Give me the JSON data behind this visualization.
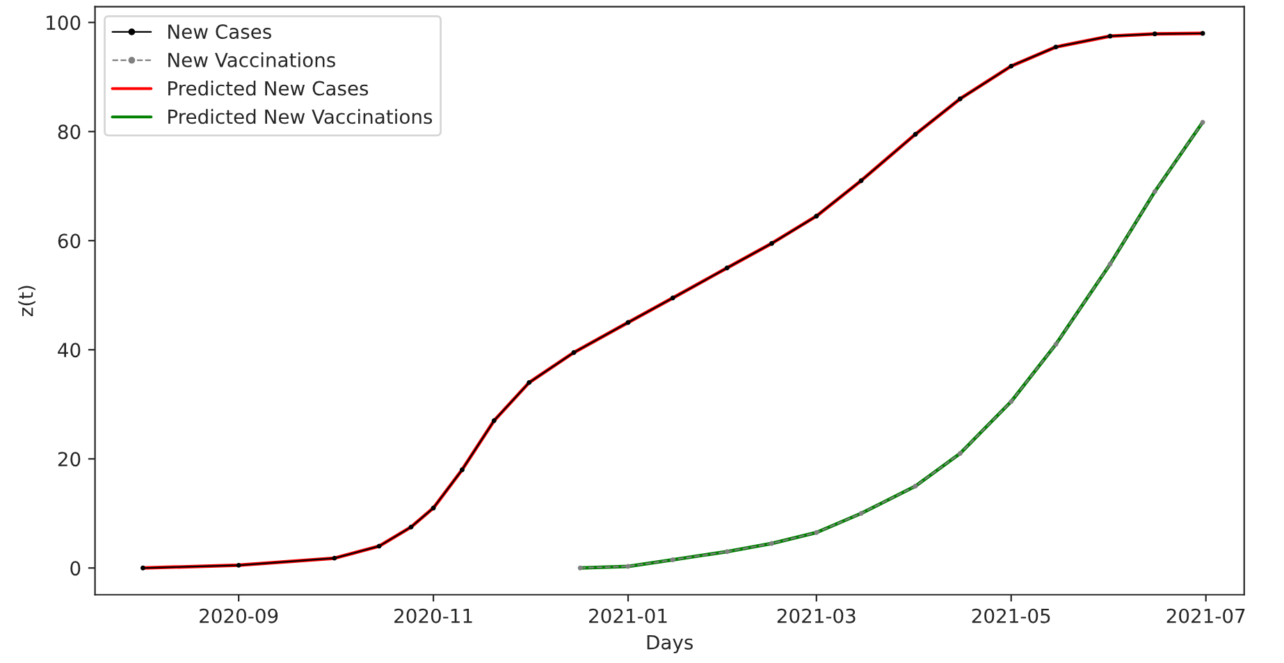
{
  "chart_data": {
    "type": "line",
    "xlabel": "Days",
    "ylabel": "z(t)",
    "xlim": [
      "2020-07-18",
      "2021-07-13"
    ],
    "xticks": [
      {
        "value": "2020-09-01",
        "label": "2020-09"
      },
      {
        "value": "2020-11-01",
        "label": "2020-11"
      },
      {
        "value": "2021-01-01",
        "label": "2021-01"
      },
      {
        "value": "2021-03-01",
        "label": "2021-03"
      },
      {
        "value": "2021-05-01",
        "label": "2021-05"
      },
      {
        "value": "2021-07-01",
        "label": "2021-07"
      }
    ],
    "ylim": [
      -4.9,
      102.9
    ],
    "yticks": [
      0,
      20,
      40,
      60,
      80,
      100
    ],
    "grid": false,
    "legend": "top left",
    "series": [
      {
        "name": "New Cases",
        "color": "#000000",
        "marker": "circle",
        "line_style": "solid",
        "x": [
          "2020-08-02",
          "2020-09-01",
          "2020-10-01",
          "2020-10-15",
          "2020-10-25",
          "2020-11-01",
          "2020-11-10",
          "2020-11-20",
          "2020-12-01",
          "2020-12-15",
          "2021-01-01",
          "2021-01-15",
          "2021-02-01",
          "2021-02-15",
          "2021-03-01",
          "2021-03-15",
          "2021-04-01",
          "2021-04-15",
          "2021-05-01",
          "2021-05-15",
          "2021-06-01",
          "2021-06-15",
          "2021-06-30"
        ],
        "values": [
          0,
          0.5,
          1.8,
          4,
          7.5,
          11,
          18,
          27,
          34,
          39.5,
          45,
          49.5,
          55,
          59.5,
          64.5,
          71,
          79.5,
          86,
          92,
          95.5,
          97.5,
          97.9,
          98
        ]
      },
      {
        "name": "New Vaccinations",
        "color": "#808080",
        "marker": "circle",
        "line_style": "dashed",
        "x": [
          "2020-12-17",
          "2021-01-01",
          "2021-01-15",
          "2021-02-01",
          "2021-02-15",
          "2021-03-01",
          "2021-03-15",
          "2021-04-01",
          "2021-04-15",
          "2021-05-01",
          "2021-05-15",
          "2021-06-01",
          "2021-06-15",
          "2021-06-30"
        ],
        "values": [
          0,
          0.3,
          1.5,
          3,
          4.5,
          6.5,
          10,
          15,
          21,
          30.5,
          41,
          55.7,
          69,
          81.7
        ]
      },
      {
        "name": "Predicted New Cases",
        "color": "#ff0000",
        "marker": "none",
        "line_style": "solid",
        "x": [
          "2020-08-02",
          "2020-09-01",
          "2020-10-01",
          "2020-10-15",
          "2020-10-25",
          "2020-11-01",
          "2020-11-10",
          "2020-11-20",
          "2020-12-01",
          "2020-12-15",
          "2021-01-01",
          "2021-01-15",
          "2021-02-01",
          "2021-02-15",
          "2021-03-01",
          "2021-03-15",
          "2021-04-01",
          "2021-04-15",
          "2021-05-01",
          "2021-05-15",
          "2021-06-01",
          "2021-06-15",
          "2021-06-30"
        ],
        "values": [
          0,
          0.5,
          1.8,
          4,
          7.5,
          11,
          18,
          27,
          34,
          39.5,
          45,
          49.5,
          55,
          59.5,
          64.5,
          71,
          79.5,
          86,
          92,
          95.5,
          97.5,
          97.9,
          98
        ]
      },
      {
        "name": "Predicted New Vaccinations",
        "color": "#008000",
        "marker": "none",
        "line_style": "solid",
        "x": [
          "2020-12-17",
          "2021-01-01",
          "2021-01-15",
          "2021-02-01",
          "2021-02-15",
          "2021-03-01",
          "2021-03-15",
          "2021-04-01",
          "2021-04-15",
          "2021-05-01",
          "2021-05-15",
          "2021-06-01",
          "2021-06-15",
          "2021-06-30"
        ],
        "values": [
          0,
          0.3,
          1.5,
          3,
          4.5,
          6.5,
          10,
          15,
          21,
          30.5,
          41,
          55.7,
          69,
          81.7
        ]
      }
    ]
  }
}
